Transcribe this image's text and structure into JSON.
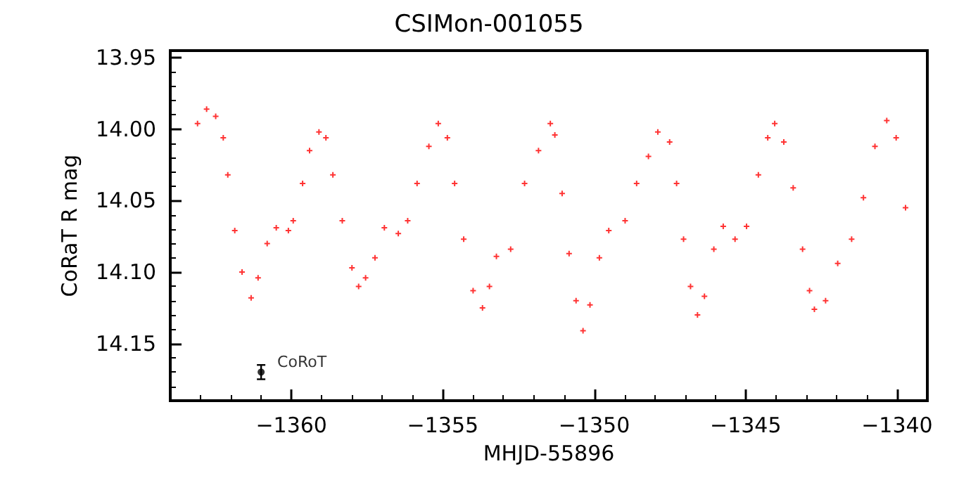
{
  "chart_data": {
    "type": "scatter",
    "title": "CSIMon-001055",
    "xlabel": "MHJD-55896",
    "ylabel": "CoRaT R mag",
    "xlim": [
      -1364,
      -1339
    ],
    "ylim": [
      14.19,
      13.945
    ],
    "xticks": [
      {
        "value": -1360,
        "label": "−1360"
      },
      {
        "value": -1355,
        "label": "−1355"
      },
      {
        "value": -1350,
        "label": "−1350"
      },
      {
        "value": -1345,
        "label": "−1345"
      },
      {
        "value": -1340,
        "label": "−1340"
      }
    ],
    "yticks": [
      {
        "value": 13.95,
        "label": "13.95"
      },
      {
        "value": 14.0,
        "label": "14.00"
      },
      {
        "value": 14.05,
        "label": "14.05"
      },
      {
        "value": 14.1,
        "label": "14.10"
      },
      {
        "value": 14.15,
        "label": "14.15"
      }
    ],
    "grid": false,
    "legend": false,
    "marker": "cross",
    "series": [
      {
        "color": "#ff0000",
        "x": [
          -1363.1,
          -1362.8,
          -1362.5,
          -1362.25,
          -1362.1,
          -1361.87,
          -1361.63,
          -1361.33,
          -1361.1,
          -1360.8,
          -1360.5,
          -1360.1,
          -1359.94,
          -1359.63,
          -1359.4,
          -1359.09,
          -1358.86,
          -1358.63,
          -1358.32,
          -1358.0,
          -1357.78,
          -1357.55,
          -1357.24,
          -1356.93,
          -1356.47,
          -1356.16,
          -1355.85,
          -1355.46,
          -1355.15,
          -1354.85,
          -1354.61,
          -1354.31,
          -1354.0,
          -1353.69,
          -1353.46,
          -1353.23,
          -1352.76,
          -1352.3,
          -1351.84,
          -1351.45,
          -1351.3,
          -1351.06,
          -1350.83,
          -1350.6,
          -1350.37,
          -1350.14,
          -1349.83,
          -1349.52,
          -1348.98,
          -1348.6,
          -1348.21,
          -1347.9,
          -1347.51,
          -1347.28,
          -1347.05,
          -1346.82,
          -1346.59,
          -1346.36,
          -1346.05,
          -1345.74,
          -1345.35,
          -1344.97,
          -1344.58,
          -1344.27,
          -1344.04,
          -1343.74,
          -1343.43,
          -1343.12,
          -1342.89,
          -1342.73,
          -1342.36,
          -1341.96,
          -1341.5,
          -1341.11,
          -1340.73,
          -1340.34,
          -1340.03,
          -1339.72
        ],
        "values": [
          13.996,
          13.986,
          13.991,
          14.006,
          14.032,
          14.071,
          14.1,
          14.118,
          14.104,
          14.08,
          14.069,
          14.071,
          14.064,
          14.038,
          14.015,
          14.002,
          14.006,
          14.032,
          14.064,
          14.097,
          14.11,
          14.104,
          14.09,
          14.069,
          14.073,
          14.064,
          14.038,
          14.012,
          13.996,
          14.006,
          14.038,
          14.077,
          14.113,
          14.125,
          14.11,
          14.089,
          14.084,
          14.038,
          14.015,
          13.996,
          14.004,
          14.045,
          14.087,
          14.12,
          14.141,
          14.123,
          14.09,
          14.071,
          14.064,
          14.038,
          14.019,
          14.002,
          14.009,
          14.038,
          14.077,
          14.11,
          14.13,
          14.117,
          14.084,
          14.068,
          14.077,
          14.068,
          14.032,
          14.006,
          13.996,
          14.009,
          14.041,
          14.084,
          14.113,
          14.126,
          14.12,
          14.094,
          14.077,
          14.048,
          14.012,
          13.994,
          14.006,
          14.055
        ]
      },
      {
        "name": "CoRoT",
        "color": "#000000",
        "marker": "circle",
        "x": [
          -1361.0
        ],
        "values": [
          14.17
        ],
        "errors": [
          0.005
        ]
      }
    ]
  }
}
